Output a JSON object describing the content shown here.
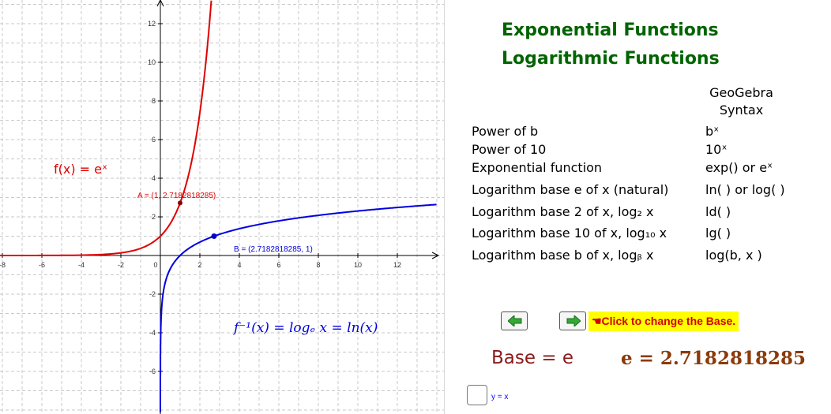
{
  "graph": {
    "x_ticks": [
      "-8",
      "-6",
      "-4",
      "-2",
      "0",
      "2",
      "4",
      "6",
      "8",
      "10",
      "12"
    ],
    "y_ticks": [
      "-6",
      "-4",
      "-2",
      "2",
      "4",
      "6",
      "8",
      "10",
      "12"
    ],
    "f_label": "f(x) = eˣ",
    "finv_label": "f⁻¹(x) = logₑ x  =  ln(x)",
    "point_a_label": "A = (1, 2.7182818285)",
    "point_b_label": "B = (2.7182818285, 1)",
    "point_a": {
      "x": 1,
      "y": 2.7182818285
    },
    "point_b": {
      "x": 2.7182818285,
      "y": 1
    },
    "colors": {
      "exp": "#e00000",
      "log": "#0000e0",
      "grid": "#c8c8c8",
      "axis": "#000000"
    }
  },
  "panel": {
    "title1": "Exponential Functions",
    "title2": "Logarithmic Functions",
    "syntax_header_1": "GeoGebra",
    "syntax_header_2": "Syntax",
    "rows": [
      {
        "label": "Power of b",
        "syntax": "bˣ"
      },
      {
        "label": "Power of 10",
        "syntax": "10ˣ"
      },
      {
        "label": "Exponential function",
        "syntax": "exp() or eˣ"
      },
      {
        "label": "Logarithm base e of x (natural)",
        "syntax": "ln( ) or log( )"
      },
      {
        "label": "Logarithm base 2 of x, log₂ x",
        "syntax": "ld( )"
      },
      {
        "label": "Logarithm base 10 of x, log₁₀ x",
        "syntax": "lg( )"
      },
      {
        "label": "Logarithm base b of x, logᵦ x",
        "syntax": "log(b, x )"
      }
    ],
    "click_note": "☚Click to change the Base.",
    "base_label": "Base = e",
    "e_value": "e = 2.7182818285",
    "checkbox_label": "y = x",
    "colors": {
      "title": "#006400",
      "note_bg": "#ffff00",
      "note_text": "#d40000",
      "base": "#8b1a1a",
      "arrow": "#22aa22"
    }
  }
}
